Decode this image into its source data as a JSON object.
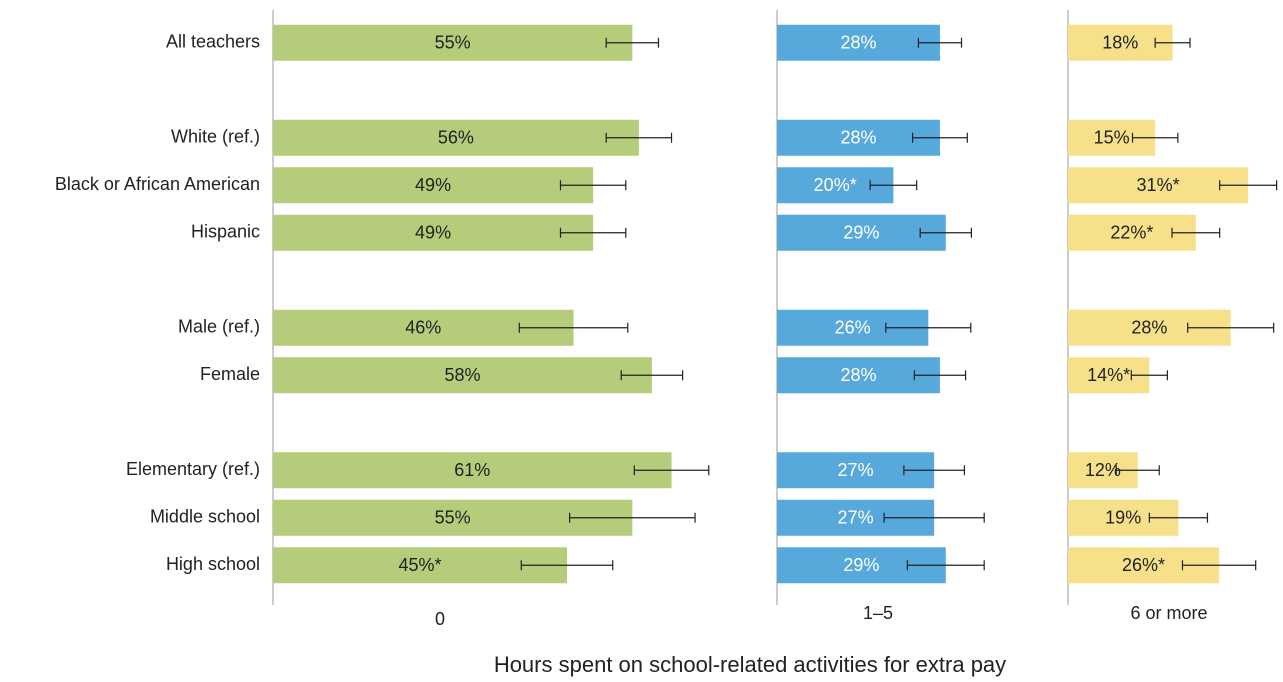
{
  "chart_data": {
    "type": "bar",
    "orientation": "horizontal",
    "xlabel": "Hours spent on school-related activities for extra pay",
    "categories": [
      "All teachers",
      null,
      "White (ref.)",
      "Black or African American",
      "Hispanic",
      null,
      "Male (ref.)",
      "Female",
      null,
      "Elementary (ref.)",
      "Middle school",
      "High school"
    ],
    "series": [
      {
        "name": "0",
        "color": "#b5cc7a",
        "label_color": "#222222",
        "xlim": [
          0,
          75
        ],
        "values": [
          55,
          null,
          56,
          49,
          49,
          null,
          46,
          58,
          null,
          61,
          55,
          45
        ],
        "value_labels": [
          "55%",
          null,
          "56%",
          "49%",
          "49%",
          null,
          "46%",
          "58%",
          null,
          "61%",
          "55%",
          "45%*"
        ],
        "errors": [
          4,
          null,
          5,
          5,
          5,
          null,
          8.3,
          4.7,
          null,
          5.7,
          9.6,
          7
        ]
      },
      {
        "name": "1–5",
        "color": "#57a9dc",
        "label_color": "#ffffff",
        "xlim": [
          0,
          50
        ],
        "values": [
          28,
          null,
          28,
          20,
          29,
          null,
          26,
          28,
          null,
          27,
          27,
          29
        ],
        "value_labels": [
          "28%",
          null,
          "28%",
          "20%*",
          "29%",
          null,
          "26%",
          "28%",
          null,
          "27%",
          "27%",
          "29%"
        ],
        "errors": [
          3.7,
          null,
          4.7,
          4,
          4.4,
          null,
          7.3,
          4.4,
          null,
          5.2,
          8.6,
          6.6
        ]
      },
      {
        "name": "6 or more",
        "color": "#f6e08a",
        "label_color": "#222222",
        "xlim": [
          0,
          37
        ],
        "values": [
          18,
          null,
          15,
          31,
          22,
          null,
          28,
          14,
          null,
          12,
          19,
          26
        ],
        "value_labels": [
          "18%",
          null,
          "15%",
          "31%*",
          "22%*",
          null,
          "28%",
          "14%*",
          null,
          "12%",
          "19%",
          "26%*"
        ],
        "errors": [
          3,
          null,
          3.9,
          4.9,
          4.1,
          null,
          7.4,
          3.1,
          null,
          3.7,
          5,
          6.3
        ]
      }
    ]
  }
}
